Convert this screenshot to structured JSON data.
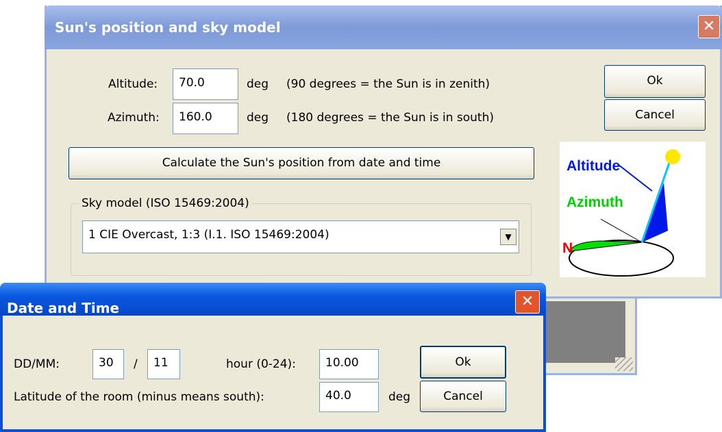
{
  "sky_dialog": {
    "title": "Sun's position and sky model",
    "altitude": {
      "label": "Altitude:",
      "value": "70.0",
      "unit": "deg",
      "note": "(90 degrees = the Sun is in zenith)"
    },
    "azimuth": {
      "label": "Azimuth:",
      "value": "160.0",
      "unit": "deg",
      "note": "(180 degrees = the Sun is in south)"
    },
    "ok": "Ok",
    "cancel": "Cancel",
    "calculate": "Calculate the Sun's position from date and time",
    "sky_model": {
      "group": "Sky model (ISO 15469:2004)",
      "selected": "1 CIE Overcast, 1:3 (I.1. ISO 15469:2004)"
    },
    "diagram": {
      "altitude": "Altitude",
      "azimuth": "Azimuth",
      "north": "N"
    }
  },
  "date_dialog": {
    "title": "Date and Time",
    "date_label": "DD/MM:",
    "day": "30",
    "separator": "/",
    "month": "11",
    "hour_label": "hour (0-24):",
    "hour": "10.00",
    "latitude_label": "Latitude of the room (minus means south):",
    "latitude": "40.0",
    "latitude_unit": "deg",
    "ok": "Ok",
    "cancel": "Cancel"
  }
}
